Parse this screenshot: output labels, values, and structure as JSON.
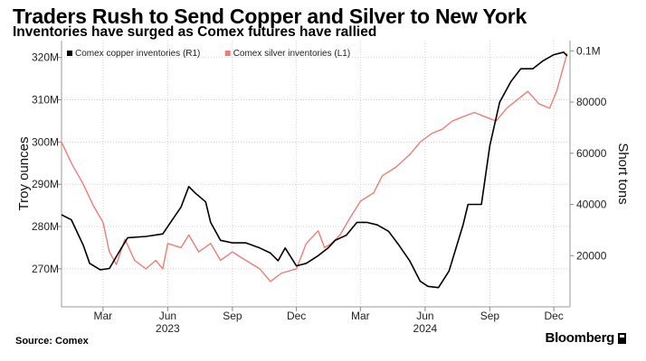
{
  "header": {
    "title": "Traders Rush to Send Copper and Silver to New York",
    "subtitle": "Inventories have surged as Comex futures have rallied"
  },
  "footer": {
    "source": "Source: Comex",
    "brand": "Bloomberg"
  },
  "chart_data": {
    "type": "line",
    "title": "Traders Rush to Send Copper and Silver to New York",
    "subtitle": "Inventories have surged as Comex futures have rallied",
    "ylabel_left": "Troy ounces",
    "ylabel_right": "Short tons",
    "grid": true,
    "legend_position": "top-left",
    "x_range": [
      "2023-01-01",
      "2024-12-24"
    ],
    "x_ticks": [
      "Mar",
      "Jun",
      "Sep",
      "Dec",
      "Mar",
      "Jun",
      "Sep",
      "Dec"
    ],
    "x_tick_dates": [
      "2023-03-01",
      "2023-06-01",
      "2023-09-01",
      "2023-12-01",
      "2024-03-01",
      "2024-06-01",
      "2024-09-01",
      "2024-12-01"
    ],
    "year_labels": [
      "2023",
      "2024"
    ],
    "y_left": {
      "ticks": [
        "270M",
        "280M",
        "290M",
        "300M",
        "310M",
        "320M"
      ],
      "tick_values": [
        270,
        280,
        290,
        300,
        310,
        320
      ],
      "range": [
        261,
        324
      ]
    },
    "y_right": {
      "ticks": [
        "20000",
        "40000",
        "60000",
        "80000",
        "0.1M"
      ],
      "tick_values": [
        20000,
        40000,
        60000,
        80000,
        100000
      ],
      "range": [
        0,
        104000
      ]
    },
    "series": [
      {
        "name": "Comex copper inventories (R1)",
        "axis": "right",
        "color": "#000000",
        "points": [
          [
            "2023-01-01",
            36000
          ],
          [
            "2023-01-15",
            34000
          ],
          [
            "2023-02-01",
            24000
          ],
          [
            "2023-02-10",
            17000
          ],
          [
            "2023-02-25",
            14500
          ],
          [
            "2023-03-10",
            15000
          ],
          [
            "2023-03-25",
            22000
          ],
          [
            "2023-04-05",
            27000
          ],
          [
            "2023-05-01",
            27500
          ],
          [
            "2023-05-25",
            28500
          ],
          [
            "2023-06-05",
            33000
          ],
          [
            "2023-06-20",
            39000
          ],
          [
            "2023-07-01",
            47000
          ],
          [
            "2023-07-10",
            44500
          ],
          [
            "2023-07-25",
            41000
          ],
          [
            "2023-08-01",
            33000
          ],
          [
            "2023-08-15",
            26000
          ],
          [
            "2023-09-01",
            25000
          ],
          [
            "2023-09-20",
            25000
          ],
          [
            "2023-10-10",
            23000
          ],
          [
            "2023-10-25",
            21000
          ],
          [
            "2023-11-05",
            18000
          ],
          [
            "2023-11-15",
            23000
          ],
          [
            "2023-12-01",
            16000
          ],
          [
            "2023-12-15",
            17000
          ],
          [
            "2024-01-01",
            20000
          ],
          [
            "2024-01-15",
            23000
          ],
          [
            "2024-01-25",
            26000
          ],
          [
            "2024-02-10",
            28000
          ],
          [
            "2024-02-25",
            33000
          ],
          [
            "2024-03-10",
            33000
          ],
          [
            "2024-03-25",
            32000
          ],
          [
            "2024-04-10",
            29500
          ],
          [
            "2024-04-25",
            24000
          ],
          [
            "2024-05-10",
            18000
          ],
          [
            "2024-05-25",
            10000
          ],
          [
            "2024-06-05",
            8000
          ],
          [
            "2024-06-20",
            7500
          ],
          [
            "2024-07-05",
            14000
          ],
          [
            "2024-07-25",
            32000
          ],
          [
            "2024-08-01",
            40000
          ],
          [
            "2024-08-20",
            40000
          ],
          [
            "2024-09-01",
            63000
          ],
          [
            "2024-09-15",
            80000
          ],
          [
            "2024-10-01",
            88000
          ],
          [
            "2024-10-15",
            93000
          ],
          [
            "2024-11-01",
            93000
          ],
          [
            "2024-11-15",
            96000
          ],
          [
            "2024-12-01",
            98500
          ],
          [
            "2024-12-15",
            99500
          ],
          [
            "2024-12-20",
            98000
          ]
        ]
      },
      {
        "name": "Comex silver inventories (L1)",
        "axis": "left",
        "color": "#f07c76",
        "points": [
          [
            "2023-01-01",
            300
          ],
          [
            "2023-01-15",
            295
          ],
          [
            "2023-02-01",
            290
          ],
          [
            "2023-02-15",
            285
          ],
          [
            "2023-03-01",
            281
          ],
          [
            "2023-03-10",
            274
          ],
          [
            "2023-03-20",
            271
          ],
          [
            "2023-04-01",
            277
          ],
          [
            "2023-04-15",
            272
          ],
          [
            "2023-05-01",
            270
          ],
          [
            "2023-05-15",
            272
          ],
          [
            "2023-05-25",
            270
          ],
          [
            "2023-06-01",
            276
          ],
          [
            "2023-06-20",
            275
          ],
          [
            "2023-07-01",
            278
          ],
          [
            "2023-07-15",
            274
          ],
          [
            "2023-08-01",
            276
          ],
          [
            "2023-08-15",
            272
          ],
          [
            "2023-09-01",
            274
          ],
          [
            "2023-09-20",
            272
          ],
          [
            "2023-10-10",
            270
          ],
          [
            "2023-10-25",
            267
          ],
          [
            "2023-11-10",
            269
          ],
          [
            "2023-12-01",
            270
          ],
          [
            "2023-12-15",
            276
          ],
          [
            "2024-01-01",
            279
          ],
          [
            "2024-01-10",
            275
          ],
          [
            "2024-01-20",
            276
          ],
          [
            "2024-02-01",
            278
          ],
          [
            "2024-02-15",
            282
          ],
          [
            "2024-03-01",
            286
          ],
          [
            "2024-03-20",
            288
          ],
          [
            "2024-04-01",
            292
          ],
          [
            "2024-04-20",
            294
          ],
          [
            "2024-05-10",
            297
          ],
          [
            "2024-05-25",
            300
          ],
          [
            "2024-06-10",
            302
          ],
          [
            "2024-06-25",
            303
          ],
          [
            "2024-07-10",
            305
          ],
          [
            "2024-07-25",
            306
          ],
          [
            "2024-08-10",
            307
          ],
          [
            "2024-08-25",
            306
          ],
          [
            "2024-09-10",
            305
          ],
          [
            "2024-09-25",
            308
          ],
          [
            "2024-10-10",
            310
          ],
          [
            "2024-10-25",
            312
          ],
          [
            "2024-11-10",
            309
          ],
          [
            "2024-11-25",
            308
          ],
          [
            "2024-12-05",
            312
          ],
          [
            "2024-12-15",
            318
          ],
          [
            "2024-12-20",
            321
          ]
        ]
      }
    ]
  }
}
